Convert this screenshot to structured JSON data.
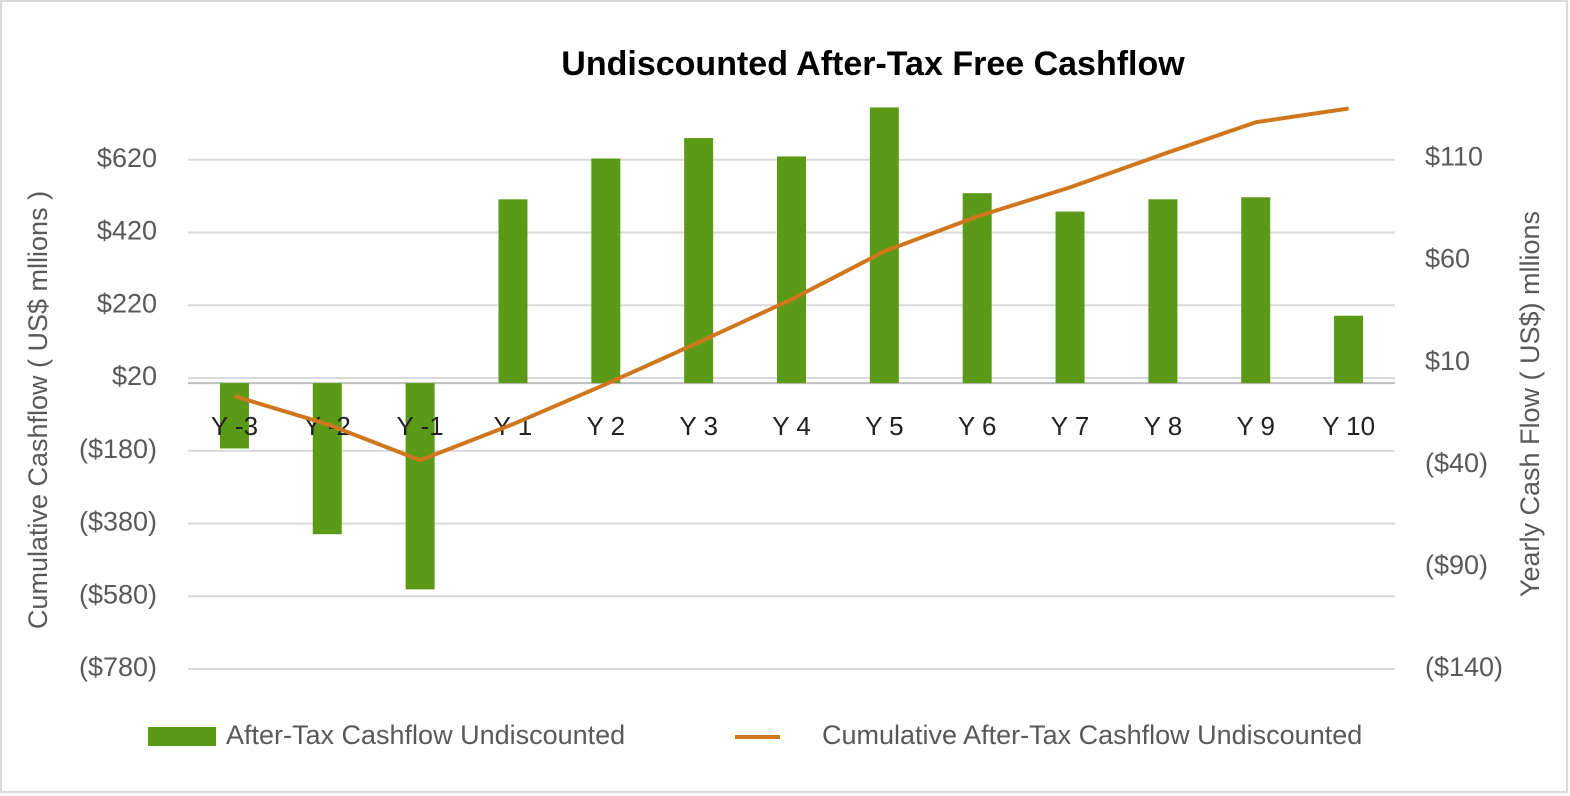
{
  "chart_data": {
    "type": "bar",
    "title": "Undiscounted  After-Tax Free Cashflow",
    "y_label": "Cumulative Cashflow ( US$  mllions )",
    "y2_label": "Yearly Cash Flow (  US$) mllions",
    "categories": [
      "Y -3",
      "Y -2",
      "Y -1",
      "Y 1",
      "Y 2",
      "Y 3",
      "Y 4",
      "Y 5",
      "Y 6",
      "Y 7",
      "Y 8",
      "Y 9",
      "Y 10"
    ],
    "series": [
      {
        "name": "After-Tax Cashflow Undiscounted",
        "type": "bar",
        "axis": "y2",
        "color": "#5b9a17",
        "values": [
          -32,
          -74,
          -101,
          90,
          110,
          120,
          111,
          135,
          93,
          84,
          90,
          91,
          33
        ]
      },
      {
        "name": "Cumulative After-Tax Cashflow Undiscounted",
        "type": "line",
        "axis": "y",
        "color": "#d0771e",
        "values": [
          -30,
          -107,
          -206,
          -107,
          3,
          118,
          236,
          368,
          464,
          544,
          635,
          723,
          761
        ]
      }
    ],
    "ylim": [
      -780,
      820
    ],
    "yticks": [
      {
        "value": 620,
        "label": "$620"
      },
      {
        "value": 420,
        "label": "$420"
      },
      {
        "value": 220,
        "label": "$220"
      },
      {
        "value": 20,
        "label": "$20"
      },
      {
        "value": -180,
        "label": "($180)"
      },
      {
        "value": -380,
        "label": "($380)"
      },
      {
        "value": -580,
        "label": "($580)"
      },
      {
        "value": -780,
        "label": "($780)"
      }
    ],
    "y2lim": [
      -140,
      145
    ],
    "y2ticks": [
      {
        "value": 110,
        "label": "$110"
      },
      {
        "value": 60,
        "label": "$60"
      },
      {
        "value": 10,
        "label": "$10"
      },
      {
        "value": -40,
        "label": "($40)"
      },
      {
        "value": -90,
        "label": "($90)"
      },
      {
        "value": -140,
        "label": "($140)"
      }
    ],
    "grid": true,
    "legend": "bottom"
  }
}
